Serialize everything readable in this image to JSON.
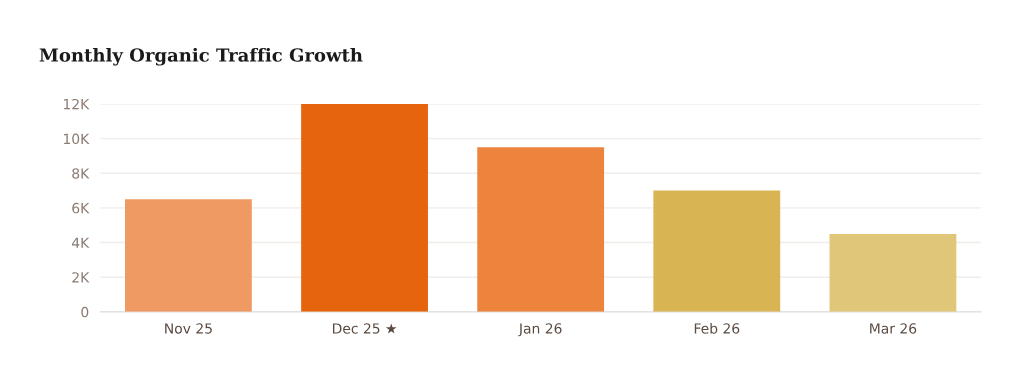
{
  "chart_data": {
    "type": "bar",
    "title": "Monthly Organic Traffic Growth",
    "categories": [
      "Nov 25",
      "Dec 25 ★",
      "Jan 26",
      "Feb 26",
      "Mar 26"
    ],
    "values": [
      6500,
      12000,
      9500,
      7000,
      4500
    ],
    "colors": [
      "#ef9a62",
      "#e5640d",
      "#ed843d",
      "#d8b452",
      "#e0c679"
    ],
    "ylim": [
      0,
      12000
    ],
    "yticks": [
      {
        "value": 0,
        "label": "0"
      },
      {
        "value": 2000,
        "label": "2K"
      },
      {
        "value": 4000,
        "label": "4K"
      },
      {
        "value": 6000,
        "label": "6K"
      },
      {
        "value": 8000,
        "label": "8K"
      },
      {
        "value": 10000,
        "label": "10K"
      },
      {
        "value": 12000,
        "label": "12K"
      }
    ],
    "grid": "y"
  }
}
